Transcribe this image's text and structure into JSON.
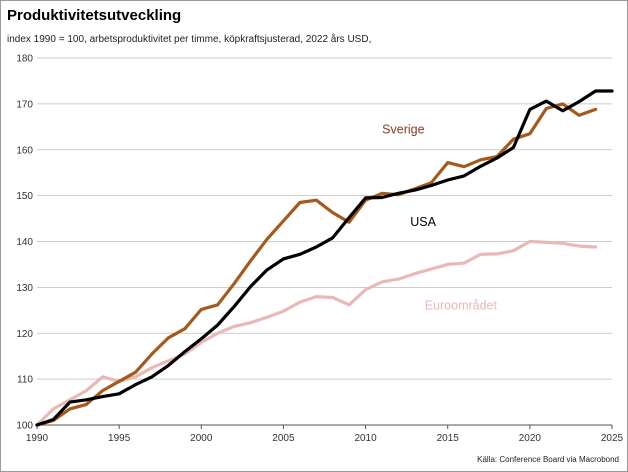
{
  "chart_data": {
    "type": "line",
    "title": "Produktivitetsutveckling",
    "subtitle": "index 1990 = 100, arbetsproduktivitet per timme, köpkraftsjusterad, 2022 års USD,",
    "source": "Källa: Conference Board via Macrobond",
    "xlim": [
      1990,
      2025
    ],
    "ylim": [
      100,
      180
    ],
    "xticks": [
      1990,
      1995,
      2000,
      2005,
      2010,
      2015,
      2020,
      2025
    ],
    "yticks": [
      100,
      110,
      120,
      130,
      140,
      150,
      160,
      170,
      180
    ],
    "grid": "horizontal",
    "series": [
      {
        "name": "Euroområdet",
        "color": "#e8b9b5",
        "x": [
          1990,
          1991,
          1992,
          1993,
          1994,
          1995,
          1996,
          1997,
          1998,
          1999,
          2000,
          2001,
          2002,
          2003,
          2004,
          2005,
          2006,
          2007,
          2008,
          2009,
          2010,
          2011,
          2012,
          2013,
          2014,
          2015,
          2016,
          2017,
          2018,
          2019,
          2020,
          2021,
          2022,
          2023,
          2024
        ],
        "y": [
          100,
          103.5,
          105.5,
          107.5,
          110.5,
          109.5,
          110.5,
          112.5,
          114,
          115.5,
          118,
          120,
          121.5,
          122.3,
          123.5,
          124.8,
          126.8,
          128,
          127.8,
          126.2,
          129.5,
          131.2,
          131.8,
          133,
          134,
          135,
          135.3,
          137.2,
          137.3,
          138,
          140,
          139.8,
          139.6,
          139,
          138.8
        ]
      },
      {
        "name": "Sverige",
        "color": "#a55a1c",
        "x": [
          1990,
          1991,
          1992,
          1993,
          1994,
          1995,
          1996,
          1997,
          1998,
          1999,
          2000,
          2001,
          2002,
          2003,
          2004,
          2005,
          2006,
          2007,
          2008,
          2009,
          2010,
          2011,
          2012,
          2013,
          2014,
          2015,
          2016,
          2017,
          2018,
          2019,
          2020,
          2021,
          2022,
          2023,
          2024
        ],
        "y": [
          100,
          101,
          103.5,
          104.5,
          107.5,
          109.5,
          111.5,
          115.5,
          119,
          121,
          125.2,
          126.2,
          130.8,
          135.8,
          140.5,
          144.5,
          148.5,
          149,
          146.3,
          144.2,
          149,
          150.5,
          150.2,
          151.5,
          152.8,
          157.2,
          156.3,
          157.8,
          158.5,
          162.3,
          163.5,
          169,
          170,
          167.5,
          168.8
        ]
      },
      {
        "name": "USA",
        "color": "#000000",
        "x": [
          1990,
          1991,
          1992,
          1993,
          1994,
          1995,
          1996,
          1997,
          1998,
          1999,
          2000,
          2001,
          2002,
          2003,
          2004,
          2005,
          2006,
          2007,
          2008,
          2009,
          2010,
          2011,
          2012,
          2013,
          2014,
          2015,
          2016,
          2017,
          2018,
          2019,
          2020,
          2021,
          2022,
          2023,
          2024,
          2025
        ],
        "y": [
          100,
          101.2,
          105,
          105.5,
          106.2,
          106.8,
          108.8,
          110.5,
          113,
          116,
          118.8,
          121.8,
          125.8,
          130.2,
          133.8,
          136.2,
          137.2,
          138.8,
          140.8,
          145.2,
          149.5,
          149.6,
          150.5,
          151.2,
          152.2,
          153.4,
          154.3,
          156.4,
          158.2,
          160.5,
          168.8,
          170.6,
          168.5,
          170.5,
          172.8,
          172.8
        ]
      }
    ],
    "labels": [
      {
        "series": "Sverige",
        "text": "Sverige",
        "x": 2012.3,
        "y": 163.5
      },
      {
        "series": "USA",
        "text": "USA",
        "x": 2013.5,
        "y": 143.4
      },
      {
        "series": "Euroområdet",
        "text": "Euroområdet",
        "x": 2015.8,
        "y": 125.2
      }
    ]
  }
}
